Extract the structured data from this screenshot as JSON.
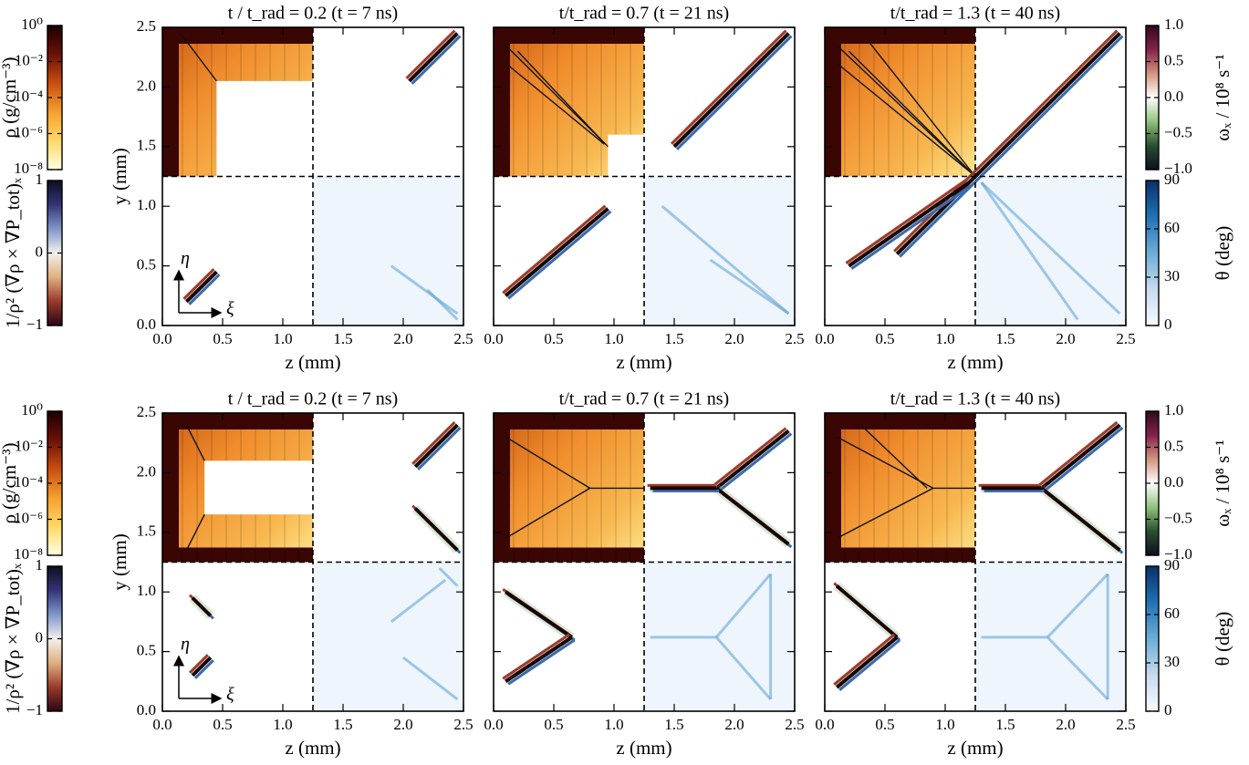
{
  "chart_data": [
    {
      "type": "heatmap",
      "title": "t / t_rad = 0.2 (t = 7 ns)",
      "xlabel": "z (mm)",
      "ylabel": "y (mm)",
      "annotations": [
        "ξ",
        "η"
      ],
      "xlim": [
        0,
        2.5
      ],
      "ylim": [
        0,
        2.5
      ],
      "xticks": [
        {
          "value": 0,
          "label": "0.0"
        },
        0.5,
        {
          "value": 1,
          "label": "1.0"
        },
        1.5,
        {
          "value": 2,
          "label": "2.0"
        },
        2.5
      ],
      "yticks": [
        {
          "value": 0,
          "label": "0.0"
        },
        0.5,
        {
          "value": 1,
          "label": "1.0"
        },
        1.5,
        {
          "value": 2,
          "label": "2.0"
        },
        2.5
      ],
      "ytick_labels": true
    },
    {
      "type": "heatmap",
      "title": "t/t_rad = 0.7 (t = 21 ns)",
      "xlabel": "z (mm)",
      "xlim": [
        0,
        2.5
      ],
      "ylim": [
        0,
        2.5
      ],
      "xticks": [
        {
          "value": 0,
          "label": "0.0"
        },
        0.5,
        {
          "value": 1,
          "label": "1.0"
        },
        1.5,
        {
          "value": 2,
          "label": "2.0"
        },
        2.5
      ],
      "yticks": [
        0,
        0.5,
        1,
        1.5,
        2,
        2.5
      ],
      "ytick_labels": false
    },
    {
      "type": "heatmap",
      "title": "t/t_rad = 1.3 (t = 40 ns)",
      "xlabel": "z (mm)",
      "xlim": [
        0,
        2.5
      ],
      "ylim": [
        0,
        2.5
      ],
      "xticks": [
        {
          "value": 0,
          "label": "0.0"
        },
        0.5,
        {
          "value": 1,
          "label": "1.0"
        },
        1.5,
        {
          "value": 2,
          "label": "2.0"
        },
        2.5
      ],
      "yticks": [
        0,
        0.5,
        1,
        1.5,
        2,
        2.5
      ],
      "ytick_labels": false
    },
    {
      "type": "heatmap",
      "title": "t / t_rad = 0.2 (t = 7 ns)",
      "xlabel": "z (mm)",
      "ylabel": "y (mm)",
      "annotations": [
        "ξ",
        "η"
      ],
      "xlim": [
        0,
        2.5
      ],
      "ylim": [
        0,
        2.5
      ],
      "xticks": [
        {
          "value": 0,
          "label": "0.0"
        },
        0.5,
        {
          "value": 1,
          "label": "1.0"
        },
        1.5,
        {
          "value": 2,
          "label": "2.0"
        },
        2.5
      ],
      "yticks": [
        {
          "value": 0,
          "label": "0.0"
        },
        0.5,
        {
          "value": 1,
          "label": "1.0"
        },
        1.5,
        {
          "value": 2,
          "label": "2.0"
        },
        2.5
      ],
      "ytick_labels": true
    },
    {
      "type": "heatmap",
      "title": "t/t_rad = 0.7 (t = 21 ns)",
      "xlabel": "z (mm)",
      "xlim": [
        0,
        2.5
      ],
      "ylim": [
        0,
        2.5
      ],
      "xticks": [
        {
          "value": 0,
          "label": "0.0"
        },
        0.5,
        {
          "value": 1,
          "label": "1.0"
        },
        1.5,
        {
          "value": 2,
          "label": "2.0"
        },
        2.5
      ],
      "yticks": [
        0,
        0.5,
        1,
        1.5,
        2,
        2.5
      ],
      "ytick_labels": false
    },
    {
      "type": "heatmap",
      "title": "t/t_rad = 1.3 (t = 40 ns)",
      "xlabel": "z (mm)",
      "xlim": [
        0,
        2.5
      ],
      "ylim": [
        0,
        2.5
      ],
      "xticks": [
        {
          "value": 0,
          "label": "0.0"
        },
        0.5,
        {
          "value": 1,
          "label": "1.0"
        },
        1.5,
        {
          "value": 2,
          "label": "2.0"
        },
        2.5
      ],
      "yticks": [
        0,
        0.5,
        1,
        1.5,
        2,
        2.5
      ],
      "ytick_labels": false
    },
    {
      "type": "colorbar",
      "label": "ρ (g/cm⁻³)",
      "log": true,
      "lim": [
        1e-08,
        1
      ],
      "ticks": [
        {
          "value": 1e-08,
          "label": "10⁻⁸"
        },
        {
          "value": 1e-06,
          "label": "10⁻⁶"
        },
        {
          "value": 0.0001,
          "label": "10⁻⁴"
        },
        {
          "value": 0.01,
          "label": "10⁻²"
        },
        {
          "value": 1,
          "label": "10⁰"
        }
      ],
      "colors": [
        "#ffffe0",
        "#ffd868",
        "#f5a030",
        "#c84e10",
        "#6a1208",
        "#1a0000"
      ]
    },
    {
      "type": "colorbar",
      "label": "1/ρ² (∇ρ × ∇P_tot)ₓ",
      "log": false,
      "lim": [
        -1,
        1
      ],
      "ticks": [
        {
          "value": -1,
          "label": "−1"
        },
        0,
        1
      ],
      "colors": [
        "#2a0616",
        "#9a3a2a",
        "#deb080",
        "#f2f0ee",
        "#8096c8",
        "#343478",
        "#0e0e1e"
      ]
    },
    {
      "type": "colorbar",
      "label": "ωₓ / 10⁸ s⁻¹",
      "log": false,
      "lim": [
        -1,
        1
      ],
      "ticks": [
        {
          "value": -1,
          "label": "−1.0"
        },
        {
          "value": -0.5,
          "label": "−0.5"
        },
        {
          "value": 0,
          "label": "0.0"
        },
        0.5,
        {
          "value": 1,
          "label": "1.0"
        }
      ],
      "colors": [
        "#0e0e22",
        "#28502e",
        "#92c27e",
        "#ffffff",
        "#d4947e",
        "#84224a",
        "#2e0a20"
      ]
    },
    {
      "type": "colorbar",
      "label": "θ (deg)",
      "log": false,
      "lim": [
        0,
        90
      ],
      "ticks": [
        0,
        30,
        60,
        90
      ],
      "colors": [
        "#f7fbff",
        "#c6dbef",
        "#6baed6",
        "#2171b5",
        "#08306b"
      ]
    },
    {
      "type": "colorbar",
      "label": "ρ (g/cm⁻³)",
      "log": true,
      "lim": [
        1e-08,
        1
      ],
      "ticks": [
        {
          "value": 1e-08,
          "label": "10⁻⁸"
        },
        {
          "value": 1e-06,
          "label": "10⁻⁶"
        },
        {
          "value": 0.0001,
          "label": "10⁻⁴"
        },
        {
          "value": 0.01,
          "label": "10⁻²"
        },
        {
          "value": 1,
          "label": "10⁰"
        }
      ],
      "colors": [
        "#ffffe0",
        "#ffd868",
        "#f5a030",
        "#c84e10",
        "#6a1208",
        "#1a0000"
      ]
    },
    {
      "type": "colorbar",
      "label": "1/ρ² (∇ρ × ∇P_tot)ₓ",
      "log": false,
      "lim": [
        -1,
        1
      ],
      "ticks": [
        {
          "value": -1,
          "label": "−1"
        },
        0,
        1
      ],
      "colors": [
        "#2a0616",
        "#9a3a2a",
        "#deb080",
        "#f2f0ee",
        "#8096c8",
        "#343478",
        "#0e0e1e"
      ]
    },
    {
      "type": "colorbar",
      "label": "ωₓ / 10⁸ s⁻¹",
      "log": false,
      "lim": [
        -1,
        1
      ],
      "ticks": [
        {
          "value": -1,
          "label": "−1.0"
        },
        {
          "value": -0.5,
          "label": "−0.5"
        },
        {
          "value": 0,
          "label": "0.0"
        },
        0.5,
        {
          "value": 1,
          "label": "1.0"
        }
      ],
      "colors": [
        "#0e0e22",
        "#28502e",
        "#92c27e",
        "#ffffff",
        "#d4947e",
        "#84224a",
        "#2e0a20"
      ]
    },
    {
      "type": "colorbar",
      "label": "θ (deg)",
      "log": false,
      "lim": [
        0,
        90
      ],
      "ticks": [
        0,
        30,
        60,
        90
      ],
      "colors": [
        "#f7fbff",
        "#c6dbef",
        "#6baed6",
        "#2171b5",
        "#08306b"
      ]
    }
  ]
}
